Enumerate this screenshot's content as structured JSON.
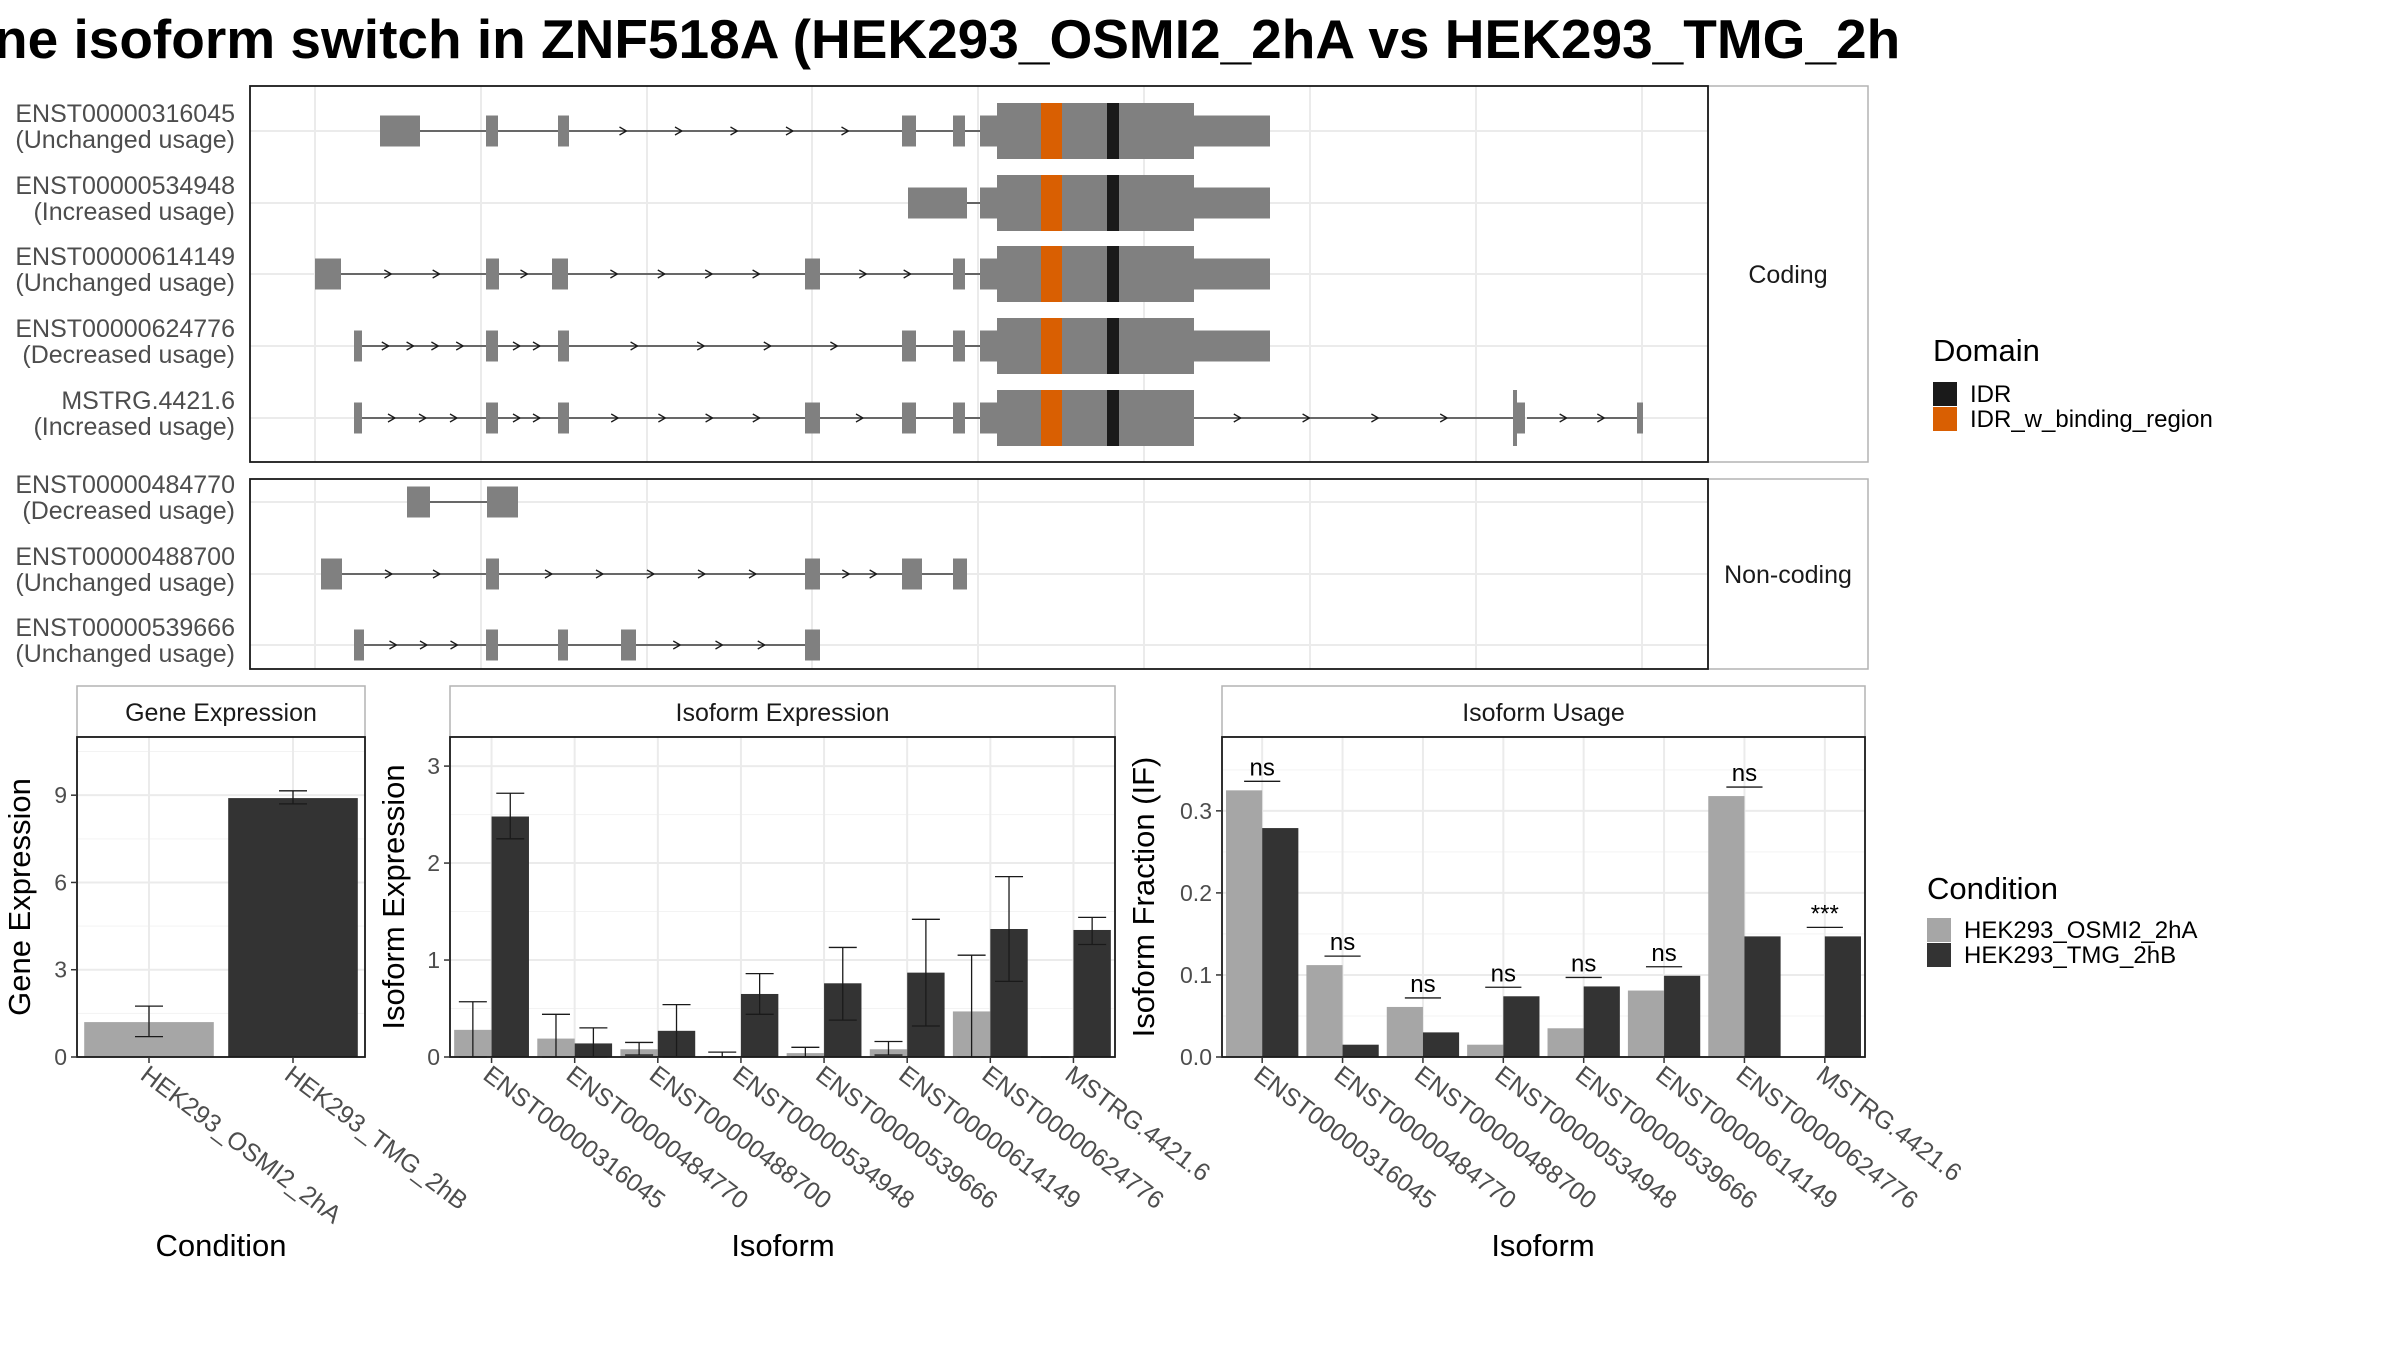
{
  "title": "ne isoform switch in ZNF518A (HEK293_OSMI2_2hA vs HEK293_TMG_2h",
  "colors": {
    "exon": "#808080",
    "IDR": "#1a1a1a",
    "IDR_w_binding_region": "#d95f02",
    "cond_a": "#a6a6a6",
    "cond_b": "#333333"
  },
  "structure": {
    "strips": [
      "Coding",
      "Non-coding"
    ],
    "coding_labels": [
      [
        "ENST00000316045",
        "(Unchanged usage)"
      ],
      [
        "ENST00000534948",
        "(Increased usage)"
      ],
      [
        "ENST00000614149",
        "(Unchanged usage)"
      ],
      [
        "ENST00000624776",
        "(Decreased usage)"
      ],
      [
        "MSTRG.4421.6",
        "(Increased usage)"
      ]
    ],
    "noncoding_labels": [
      [
        "ENST00000484770",
        "(Decreased usage)"
      ],
      [
        "ENST00000488700",
        "(Unchanged usage)"
      ],
      [
        "ENST00000539666",
        "(Unchanged usage)"
      ]
    ]
  },
  "domain_legend": {
    "title": "Domain",
    "items": [
      {
        "name": "IDR",
        "color": "#1a1a1a"
      },
      {
        "name": "IDR_w_binding_region",
        "color": "#d95f02"
      }
    ]
  },
  "condition_legend": {
    "title": "Condition",
    "items": [
      {
        "name": "HEK293_OSMI2_2hA",
        "color": "#a6a6a6"
      },
      {
        "name": "HEK293_TMG_2hB",
        "color": "#333333"
      }
    ]
  },
  "chart_data": [
    {
      "type": "bar",
      "title": "Gene Expression",
      "xlabel": "Condition",
      "ylabel": "Gene Expression",
      "ylim": [
        0,
        11
      ],
      "yticks": [
        0,
        3,
        6,
        9
      ],
      "categories": [
        "HEK293_OSMI2_2hA",
        "HEK293_TMG_2hB"
      ],
      "values": [
        1.2,
        8.9
      ],
      "errors": [
        [
          0.7,
          1.75
        ],
        [
          8.7,
          9.15
        ]
      ]
    },
    {
      "type": "bar",
      "title": "Isoform Expression",
      "xlabel": "Isoform",
      "ylabel": "Isoform Expression",
      "ylim": [
        0,
        3.3
      ],
      "yticks": [
        0,
        1,
        2,
        3
      ],
      "categories": [
        "ENST00000316045",
        "ENST00000484770",
        "ENST00000488700",
        "ENST00000534948",
        "ENST00000539666",
        "ENST00000614149",
        "ENST00000624776",
        "MSTRG.4421.6"
      ],
      "series": [
        {
          "name": "HEK293_OSMI2_2hA",
          "values": [
            0.28,
            0.19,
            0.08,
            0.01,
            0.04,
            0.08,
            0.47,
            0.0
          ],
          "errors": [
            [
              0.0,
              0.57
            ],
            [
              0.0,
              0.44
            ],
            [
              0.02,
              0.15
            ],
            [
              0.0,
              0.05
            ],
            [
              0.0,
              0.1
            ],
            [
              0.02,
              0.16
            ],
            [
              0.0,
              1.05
            ],
            [
              0.0,
              0.0
            ]
          ]
        },
        {
          "name": "HEK293_TMG_2hB",
          "values": [
            2.48,
            0.14,
            0.27,
            0.65,
            0.76,
            0.87,
            1.32,
            1.31
          ],
          "errors": [
            [
              2.25,
              2.72
            ],
            [
              0.0,
              0.3
            ],
            [
              0.0,
              0.54
            ],
            [
              0.44,
              0.86
            ],
            [
              0.38,
              1.13
            ],
            [
              0.32,
              1.42
            ],
            [
              0.78,
              1.86
            ],
            [
              1.16,
              1.44
            ]
          ]
        }
      ]
    },
    {
      "type": "bar",
      "title": "Isoform Usage",
      "xlabel": "Isoform",
      "ylabel": "Isoform Fraction (IF)",
      "ylim": [
        0,
        0.39
      ],
      "yticks": [
        0.0,
        0.1,
        0.2,
        0.3
      ],
      "ytick_labels": [
        "0.0",
        "0.1",
        "0.2",
        "0.3"
      ],
      "categories": [
        "ENST00000316045",
        "ENST00000484770",
        "ENST00000488700",
        "ENST00000534948",
        "ENST00000539666",
        "ENST00000614149",
        "ENST00000624776",
        "MSTRG.4421.6"
      ],
      "series": [
        {
          "name": "HEK293_OSMI2_2hA",
          "values": [
            0.325,
            0.112,
            0.061,
            0.015,
            0.035,
            0.081,
            0.318,
            0.0
          ]
        },
        {
          "name": "HEK293_TMG_2hB",
          "values": [
            0.279,
            0.015,
            0.03,
            0.074,
            0.086,
            0.099,
            0.147,
            0.147
          ]
        }
      ],
      "significance": [
        "ns",
        "ns",
        "ns",
        "ns",
        "ns",
        "ns",
        "ns",
        "***"
      ]
    }
  ]
}
